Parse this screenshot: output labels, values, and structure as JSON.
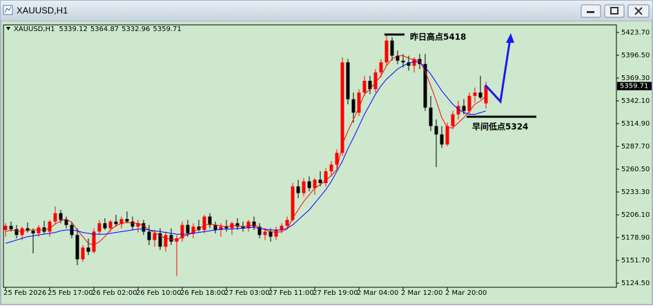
{
  "chart_data": {
    "type": "candlestick",
    "title": "XAUUSD,H1",
    "categories": [
      "25 Feb 2026",
      null,
      null,
      null,
      null,
      null,
      null,
      null,
      "25 Feb 17:00",
      null,
      null,
      null,
      null,
      null,
      null,
      null,
      "26 Feb 02:00",
      null,
      null,
      null,
      null,
      null,
      null,
      null,
      "26 Feb 10:00",
      null,
      null,
      null,
      null,
      null,
      null,
      null,
      "26 Feb 18:00",
      null,
      null,
      null,
      null,
      null,
      null,
      null,
      "27 Feb 03:00",
      null,
      null,
      null,
      null,
      null,
      null,
      null,
      "27 Feb 11:00",
      null,
      null,
      null,
      null,
      null,
      null,
      null,
      "27 Feb 19:00",
      null,
      null,
      null,
      null,
      null,
      null,
      null,
      "2 Mar 04:00",
      null,
      null,
      null,
      null,
      null,
      null,
      null,
      "2 Mar 12:00",
      null,
      null,
      null,
      null,
      null,
      null,
      null,
      "2 Mar 20:00",
      null,
      null,
      null,
      null,
      null,
      null,
      null
    ],
    "open": [
      5188,
      5193,
      5189,
      5182,
      5190,
      5187,
      5184,
      5191,
      5186,
      5198,
      5208,
      5200,
      5194,
      5182,
      5153,
      5167,
      5162,
      5186,
      5196,
      5190,
      5198,
      5195,
      5201,
      5198,
      5192,
      5196,
      5186,
      5176,
      5184,
      5168,
      5182,
      5174,
      5178,
      5194,
      5184,
      5192,
      5188,
      5204,
      5194,
      5188,
      5192,
      5190,
      5196,
      5192,
      5190,
      5198,
      5192,
      5182,
      5186,
      5180,
      5188,
      5193,
      5200,
      5240,
      5232,
      5246,
      5238,
      5248,
      5244,
      5258,
      5266,
      5280,
      5388,
      5344,
      5328,
      5352,
      5366,
      5356,
      5376,
      5388,
      5414,
      5396,
      5390,
      5388,
      5384,
      5392,
      5386,
      5334,
      5312,
      5302,
      5290,
      5312,
      5326,
      5336,
      5330,
      5348,
      5352,
      5339.12
    ],
    "high": [
      5196,
      5198,
      5194,
      5192,
      5197,
      5190,
      5194,
      5199,
      5200,
      5216,
      5212,
      5204,
      5198,
      5190,
      5170,
      5178,
      5190,
      5200,
      5202,
      5200,
      5206,
      5204,
      5210,
      5204,
      5200,
      5200,
      5194,
      5188,
      5190,
      5186,
      5190,
      5182,
      5198,
      5200,
      5196,
      5200,
      5206,
      5208,
      5198,
      5196,
      5200,
      5198,
      5202,
      5198,
      5200,
      5204,
      5196,
      5190,
      5190,
      5192,
      5196,
      5204,
      5244,
      5248,
      5250,
      5252,
      5250,
      5258,
      5262,
      5270,
      5284,
      5394,
      5392,
      5352,
      5356,
      5372,
      5372,
      5380,
      5392,
      5422,
      5418,
      5402,
      5398,
      5396,
      5394,
      5398,
      5398,
      5348,
      5320,
      5312,
      5316,
      5330,
      5342,
      5344,
      5352,
      5358,
      5372,
      5364.87
    ],
    "low": [
      5180,
      5186,
      5178,
      5176,
      5185,
      5160,
      5180,
      5183,
      5180,
      5195,
      5196,
      5190,
      5178,
      5146,
      5150,
      5158,
      5160,
      5182,
      5188,
      5186,
      5192,
      5190,
      5196,
      5188,
      5185,
      5182,
      5170,
      5168,
      5164,
      5162,
      5170,
      5133,
      5174,
      5180,
      5178,
      5186,
      5184,
      5190,
      5184,
      5180,
      5186,
      5182,
      5188,
      5186,
      5186,
      5188,
      5178,
      5176,
      5174,
      5176,
      5184,
      5190,
      5198,
      5226,
      5228,
      5234,
      5230,
      5240,
      5240,
      5252,
      5260,
      5276,
      5338,
      5316,
      5324,
      5348,
      5350,
      5352,
      5370,
      5384,
      5390,
      5386,
      5382,
      5378,
      5376,
      5380,
      5330,
      5306,
      5263,
      5286,
      5288,
      5308,
      5320,
      5326,
      5326,
      5340,
      5344,
      5332.96
    ],
    "close": [
      5193,
      5189,
      5182,
      5190,
      5187,
      5184,
      5191,
      5186,
      5198,
      5208,
      5200,
      5194,
      5182,
      5153,
      5167,
      5162,
      5186,
      5196,
      5190,
      5198,
      5195,
      5201,
      5198,
      5192,
      5196,
      5186,
      5176,
      5184,
      5168,
      5182,
      5174,
      5178,
      5194,
      5184,
      5192,
      5188,
      5204,
      5194,
      5188,
      5192,
      5190,
      5196,
      5192,
      5190,
      5198,
      5192,
      5182,
      5186,
      5180,
      5188,
      5193,
      5200,
      5240,
      5232,
      5246,
      5238,
      5248,
      5244,
      5258,
      5266,
      5280,
      5388,
      5344,
      5328,
      5352,
      5366,
      5356,
      5376,
      5388,
      5414,
      5396,
      5390,
      5388,
      5384,
      5392,
      5386,
      5334,
      5312,
      5302,
      5290,
      5312,
      5326,
      5336,
      5330,
      5348,
      5352,
      5346,
      5359.71
    ],
    "up_color": "#ff0000",
    "down_color": "#000000",
    "moving_averages": [
      {
        "color": "#ff0000",
        "values": [
          5186,
          5188,
          5187,
          5186,
          5188,
          5188,
          5188,
          5188,
          5190,
          5195,
          5199,
          5201,
          5197,
          5188,
          5180,
          5172,
          5170,
          5174,
          5180,
          5188,
          5193,
          5196,
          5197,
          5196,
          5196,
          5193,
          5188,
          5185,
          5181,
          5178,
          5177,
          5176,
          5180,
          5182,
          5186,
          5189,
          5194,
          5195,
          5194,
          5193,
          5192,
          5193,
          5193,
          5192,
          5193,
          5194,
          5191,
          5188,
          5186,
          5185,
          5186,
          5189,
          5202,
          5212,
          5222,
          5230,
          5238,
          5242,
          5247,
          5253,
          5260,
          5290,
          5306,
          5320,
          5334,
          5350,
          5356,
          5364,
          5372,
          5384,
          5392,
          5396,
          5396,
          5393,
          5391,
          5390,
          5377,
          5360,
          5342,
          5322,
          5310,
          5310,
          5316,
          5322,
          5330,
          5338,
          5342,
          5348
        ]
      },
      {
        "color": "#0000ff",
        "values": [
          5172,
          5174,
          5176,
          5178,
          5180,
          5181,
          5182,
          5183,
          5184,
          5185,
          5187,
          5188,
          5188,
          5187,
          5185,
          5184,
          5183,
          5183,
          5183,
          5184,
          5185,
          5186,
          5187,
          5188,
          5189,
          5189,
          5188,
          5187,
          5186,
          5185,
          5184,
          5183,
          5183,
          5183,
          5184,
          5185,
          5186,
          5187,
          5188,
          5189,
          5189,
          5189,
          5190,
          5190,
          5191,
          5191,
          5190,
          5189,
          5188,
          5188,
          5188,
          5190,
          5194,
          5200,
          5206,
          5212,
          5220,
          5228,
          5236,
          5246,
          5258,
          5270,
          5285,
          5298,
          5312,
          5326,
          5338,
          5350,
          5360,
          5368,
          5374,
          5380,
          5384,
          5387,
          5389,
          5388,
          5382,
          5374,
          5364,
          5354,
          5346,
          5338,
          5332,
          5328,
          5326,
          5326,
          5328,
          5330
        ]
      }
    ],
    "ylim": [
      5119.6,
      5431.1
    ],
    "yticks": [
      {
        "value": 5124.5,
        "label": "5124.50"
      },
      {
        "value": 5151.7,
        "label": "5151.70"
      },
      {
        "value": 5178.9,
        "label": "5178.90"
      },
      {
        "value": 5206.1,
        "label": "5206.10"
      },
      {
        "value": 5233.3,
        "label": "5233.30"
      },
      {
        "value": 5260.5,
        "label": "5260.50"
      },
      {
        "value": 5287.7,
        "label": "5287.70"
      },
      {
        "value": 5314.9,
        "label": "5314.90"
      },
      {
        "value": 5342.1,
        "label": "5342.10"
      },
      {
        "value": 5369.3,
        "label": "5369.30"
      },
      {
        "value": 5396.5,
        "label": "5396.50"
      },
      {
        "value": 5423.7,
        "label": "5423.70"
      }
    ],
    "annotations": [
      "昨日高点5418",
      "早间低点5324"
    ]
  }
}
